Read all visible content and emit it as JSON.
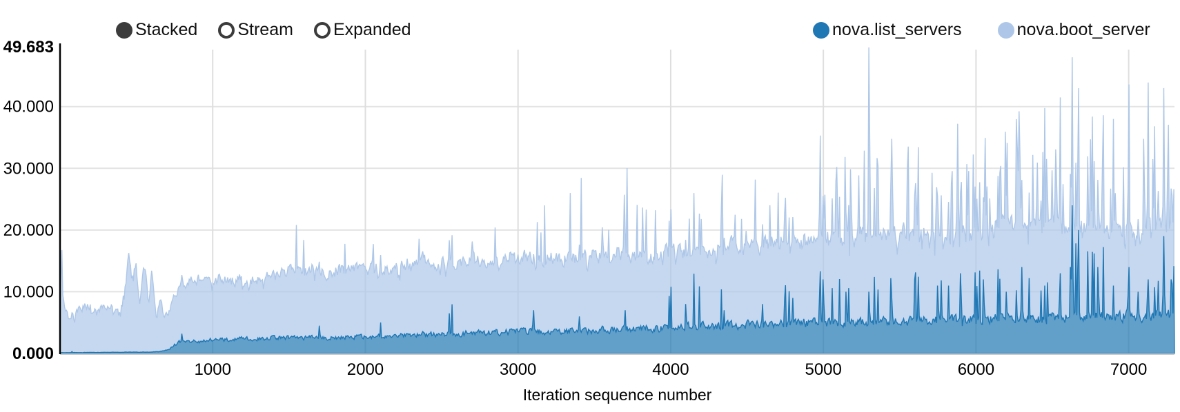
{
  "controls": {
    "items": [
      {
        "id": "stacked",
        "label": "Stacked",
        "selected": true
      },
      {
        "id": "stream",
        "label": "Stream",
        "selected": false
      },
      {
        "id": "expanded",
        "label": "Expanded",
        "selected": false
      }
    ]
  },
  "legend": {
    "items": [
      {
        "label": "nova.list_servers",
        "color": "#1f77b4"
      },
      {
        "label": "nova.boot_server",
        "color": "#aec7e8"
      }
    ]
  },
  "colors": {
    "axis_line": "#000000",
    "grid_horizontal": "#e3e3e3",
    "grid_vertical": "#dedede",
    "zero_line": "#c9c9c9",
    "radio": "#3c3c3c",
    "text": "#000000"
  },
  "chart_data": {
    "type": "area",
    "stacked": true,
    "mode": "Stacked",
    "title": "",
    "xlabel": "Iteration sequence number",
    "ylabel": "",
    "x_domain": [
      0,
      7300
    ],
    "y_domain": [
      0,
      49.683
    ],
    "grid": true,
    "legend_position": "top-right",
    "x_ticks": [
      {
        "value": 1000,
        "label": "1000"
      },
      {
        "value": 2000,
        "label": "2000"
      },
      {
        "value": 3000,
        "label": "3000"
      },
      {
        "value": 4000,
        "label": "4000"
      },
      {
        "value": 5000,
        "label": "5000"
      },
      {
        "value": 6000,
        "label": "6000"
      },
      {
        "value": 7000,
        "label": "7000"
      }
    ],
    "y_ticks": [
      {
        "value": 0,
        "label": "0.000",
        "bold": true
      },
      {
        "value": 10,
        "label": "10.000",
        "bold": false
      },
      {
        "value": 20,
        "label": "20.000",
        "bold": false
      },
      {
        "value": 30,
        "label": "30.000",
        "bold": false
      },
      {
        "value": 40,
        "label": "40.000",
        "bold": false
      },
      {
        "value": 49.683,
        "label": "49.683",
        "bold": true
      }
    ],
    "y_max_value": 49.683,
    "sampling_step": 6,
    "seed": 20240101,
    "noise": {
      "light_jitter": [
        0.85,
        0.3
      ],
      "dark_jitter": [
        0.78,
        0.44
      ],
      "dip": {
        "x_split": 4800,
        "p_left": 0.05,
        "p_right": 0.09,
        "factor": [
          0.66,
          0.14
        ]
      },
      "spike_p_light": {
        "x0": 2000,
        "base": 0.004,
        "max_add": 0.116
      },
      "spike_p_dark": {
        "x0": 2500,
        "base": 0.003,
        "max_add": 0.097
      },
      "spike_gain_light": [
        1.35,
        0.65
      ],
      "spike_gain_dark": [
        1.7,
        1.1
      ],
      "smooth_light": 0.55,
      "smooth_dark": 0.6,
      "spike_width_light": 14,
      "spike_width_dark": 12
    },
    "series": [
      {
        "name": "nova.list_servers",
        "color": "#1f77b4",
        "fill_opacity": 0.7,
        "trend": [
          [
            0,
            0.12
          ],
          [
            300,
            0.18
          ],
          [
            600,
            0.22
          ],
          [
            680,
            0.4
          ],
          [
            720,
            0.9
          ],
          [
            760,
            1.6
          ],
          [
            800,
            2.1
          ],
          [
            900,
            1.9
          ],
          [
            1000,
            2.2
          ],
          [
            1250,
            2.4
          ],
          [
            1500,
            2.5
          ],
          [
            1750,
            2.6
          ],
          [
            2000,
            2.7
          ],
          [
            2250,
            3.0
          ],
          [
            2500,
            3.2
          ],
          [
            2750,
            3.3
          ],
          [
            3000,
            3.5
          ],
          [
            3250,
            3.6
          ],
          [
            3500,
            3.8
          ],
          [
            3750,
            4.0
          ],
          [
            4000,
            4.2
          ],
          [
            4250,
            4.4
          ],
          [
            4500,
            4.6
          ],
          [
            4750,
            4.8
          ],
          [
            5000,
            5.0
          ],
          [
            5250,
            5.1
          ],
          [
            5500,
            5.2
          ],
          [
            5750,
            5.4
          ],
          [
            6000,
            5.5
          ],
          [
            6250,
            5.7
          ],
          [
            6500,
            5.8
          ],
          [
            6750,
            6.0
          ],
          [
            7000,
            6.1
          ],
          [
            7300,
            6.3
          ]
        ],
        "spikes": [
          [
            800,
            3.2
          ],
          [
            1700,
            4.5
          ],
          [
            2100,
            5
          ],
          [
            2550,
            6.5
          ],
          [
            3100,
            7
          ],
          [
            3400,
            6
          ],
          [
            3700,
            7
          ],
          [
            4100,
            8
          ],
          [
            4350,
            7
          ],
          [
            4600,
            8
          ],
          [
            4800,
            9
          ],
          [
            5000,
            12
          ],
          [
            5150,
            10
          ],
          [
            5300,
            10
          ],
          [
            5450,
            9
          ],
          [
            5600,
            12
          ],
          [
            5750,
            11
          ],
          [
            5900,
            13
          ],
          [
            6050,
            12
          ],
          [
            6200,
            10
          ],
          [
            6300,
            14
          ],
          [
            6450,
            11
          ],
          [
            6550,
            13
          ],
          [
            6630,
            24
          ],
          [
            6670,
            20
          ],
          [
            6800,
            14
          ],
          [
            6900,
            11
          ],
          [
            7000,
            14
          ],
          [
            7060,
            10
          ],
          [
            7125,
            12
          ],
          [
            7230,
            19
          ],
          [
            7280,
            12
          ]
        ]
      },
      {
        "name": "nova.boot_server",
        "color": "#aec7e8",
        "fill_opacity": 0.7,
        "trend": [
          [
            0,
            11.5
          ],
          [
            25,
            7.8
          ],
          [
            55,
            5.2
          ],
          [
            90,
            7.0
          ],
          [
            150,
            7.5
          ],
          [
            250,
            7.3
          ],
          [
            350,
            7.5
          ],
          [
            410,
            8.5
          ],
          [
            445,
            16.0
          ],
          [
            470,
            11.0
          ],
          [
            495,
            14.5
          ],
          [
            520,
            6.5
          ],
          [
            545,
            15.0
          ],
          [
            575,
            7.5
          ],
          [
            600,
            13.0
          ],
          [
            628,
            4.2
          ],
          [
            652,
            9.5
          ],
          [
            675,
            5.3
          ],
          [
            700,
            5.8
          ],
          [
            740,
            7.5
          ],
          [
            790,
            9.0
          ],
          [
            850,
            9.8
          ],
          [
            950,
            10.3
          ],
          [
            1100,
            9.8
          ],
          [
            1300,
            10.3
          ],
          [
            1500,
            10.6
          ],
          [
            1700,
            10.9
          ],
          [
            1900,
            10.8
          ],
          [
            2100,
            11.2
          ],
          [
            2300,
            11.6
          ],
          [
            2500,
            11.9
          ],
          [
            2700,
            11.6
          ],
          [
            2900,
            11.6
          ],
          [
            3100,
            11.9
          ],
          [
            3300,
            12.1
          ],
          [
            3500,
            12.0
          ],
          [
            3700,
            12.1
          ],
          [
            3900,
            12.0
          ],
          [
            4100,
            12.4
          ],
          [
            4300,
            12.7
          ],
          [
            4500,
            12.9
          ],
          [
            4700,
            13.2
          ],
          [
            4900,
            13.6
          ],
          [
            5100,
            13.8
          ],
          [
            5300,
            14.0
          ],
          [
            5500,
            14.2
          ],
          [
            5700,
            14.4
          ],
          [
            5900,
            14.4
          ],
          [
            6100,
            14.7
          ],
          [
            6300,
            14.9
          ],
          [
            6500,
            14.9
          ],
          [
            6700,
            14.8
          ],
          [
            6900,
            14.7
          ],
          [
            7100,
            14.9
          ],
          [
            7300,
            14.9
          ]
        ],
        "spikes": [
          [
            2050,
            15
          ],
          [
            2350,
            15.5
          ],
          [
            2700,
            15
          ],
          [
            3150,
            16
          ],
          [
            3550,
            16
          ],
          [
            3900,
            16.5
          ],
          [
            4200,
            17
          ],
          [
            4420,
            18
          ],
          [
            4650,
            19
          ],
          [
            4980,
            22
          ],
          [
            5090,
            25
          ],
          [
            5180,
            25
          ],
          [
            5300,
            39.6
          ],
          [
            5360,
            20
          ],
          [
            5450,
            20
          ],
          [
            5620,
            21
          ],
          [
            5740,
            22
          ],
          [
            5880,
            32
          ],
          [
            5950,
            24
          ],
          [
            6060,
            29
          ],
          [
            6160,
            24
          ],
          [
            6280,
            34
          ],
          [
            6400,
            26
          ],
          [
            6520,
            27
          ],
          [
            6630,
            24
          ],
          [
            6670,
            23
          ],
          [
            6750,
            29
          ],
          [
            6830,
            25
          ],
          [
            6900,
            27
          ],
          [
            7000,
            24
          ],
          [
            7100,
            29
          ],
          [
            7160,
            25
          ],
          [
            7230,
            24
          ],
          [
            7258,
            30
          ]
        ]
      }
    ]
  }
}
